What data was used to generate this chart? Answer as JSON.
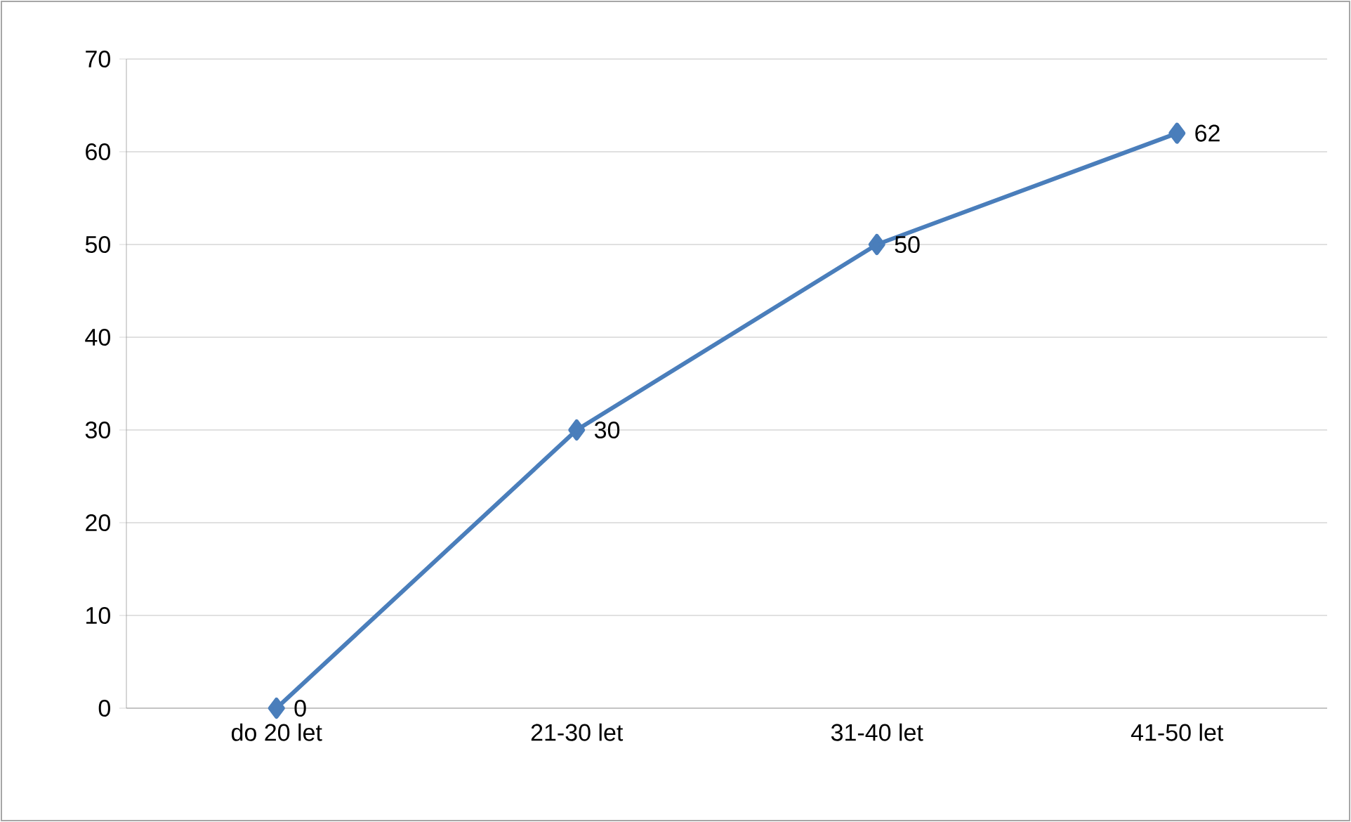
{
  "chart_data": {
    "type": "line",
    "categories": [
      "do 20 let",
      "21-30 let",
      "31-40 let",
      "41-50 let"
    ],
    "values": [
      0,
      30,
      50,
      62
    ],
    "color": "#4a7ebb",
    "ylim": [
      0,
      70
    ],
    "yticks": [
      0,
      10,
      20,
      30,
      40,
      50,
      60,
      70
    ],
    "grid": "y",
    "marker": "diamond",
    "line_style": "solid",
    "data_labels": true
  }
}
